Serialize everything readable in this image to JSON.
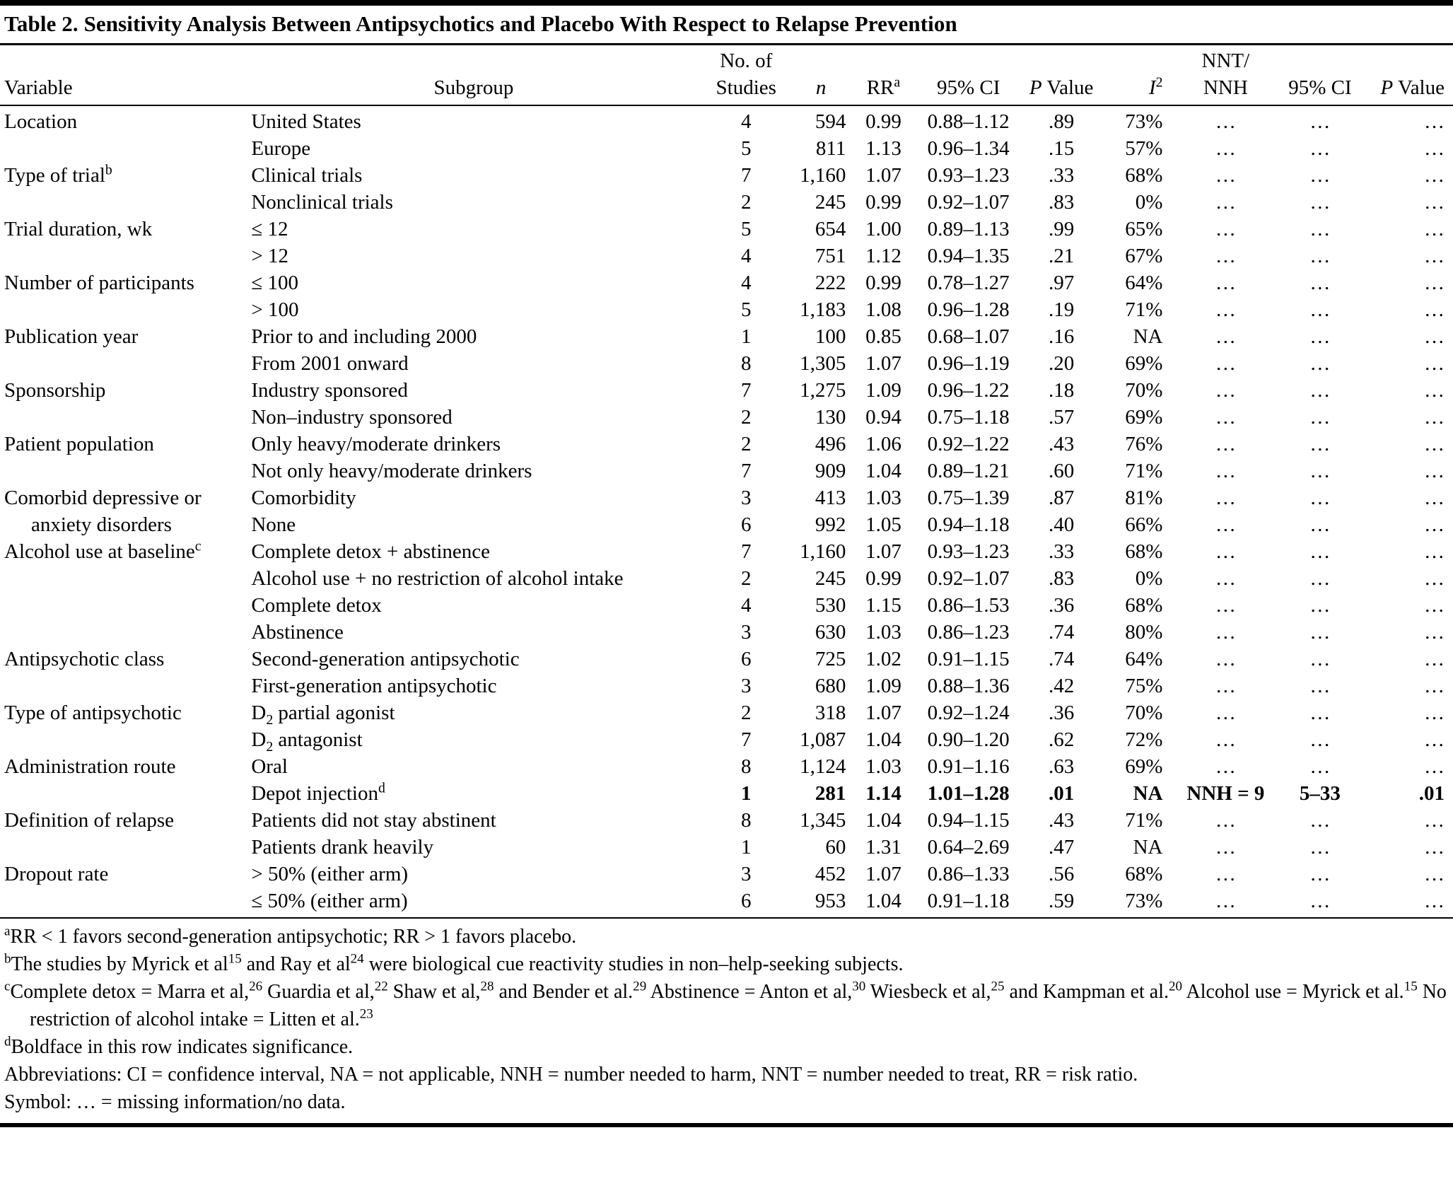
{
  "title": "Table 2. Sensitivity Analysis Between Antipsychotics and Placebo With Respect to Relapse Prevention",
  "table": {
    "header": {
      "line1": {
        "variable": "",
        "subgroup": "",
        "studies": "No. of",
        "n": "",
        "rr": "",
        "ci": "",
        "p": "",
        "i2": "",
        "nnt": "NNT/",
        "ci2": "",
        "p2": ""
      },
      "line2": {
        "variable": "Variable",
        "subgroup": "Subgroup",
        "studies": "Studies",
        "n": "*n*",
        "rr": "RR^a^",
        "ci": "95% CI",
        "p": "*P* Value",
        "i2": "*I*^2^",
        "nnt": "NNH",
        "ci2": "95% CI",
        "p2": "*P* Value"
      }
    },
    "rows": [
      {
        "variable": "Location",
        "subgroup": "United States",
        "studies": "4",
        "n": "594",
        "rr": "0.99",
        "ci": "0.88–1.12",
        "p": ".89",
        "i2": "73%",
        "nnt": "…",
        "ci2": "…",
        "p2": "…"
      },
      {
        "variable": "",
        "subgroup": "Europe",
        "studies": "5",
        "n": "811",
        "rr": "1.13",
        "ci": "0.96–1.34",
        "p": ".15",
        "i2": "57%",
        "nnt": "…",
        "ci2": "…",
        "p2": "…"
      },
      {
        "variable": "Type of trial^b^",
        "subgroup": "Clinical trials",
        "studies": "7",
        "n": "1,160",
        "rr": "1.07",
        "ci": "0.93–1.23",
        "p": ".33",
        "i2": "68%",
        "nnt": "…",
        "ci2": "…",
        "p2": "…"
      },
      {
        "variable": "",
        "subgroup": "Nonclinical trials",
        "studies": "2",
        "n": "245",
        "rr": "0.99",
        "ci": "0.92–1.07",
        "p": ".83",
        "i2": "0%",
        "nnt": "…",
        "ci2": "…",
        "p2": "…"
      },
      {
        "variable": "Trial duration, wk",
        "subgroup": "≤ 12",
        "studies": "5",
        "n": "654",
        "rr": "1.00",
        "ci": "0.89–1.13",
        "p": ".99",
        "i2": "65%",
        "nnt": "…",
        "ci2": "…",
        "p2": "…"
      },
      {
        "variable": "",
        "subgroup": "> 12",
        "studies": "4",
        "n": "751",
        "rr": "1.12",
        "ci": "0.94–1.35",
        "p": ".21",
        "i2": "67%",
        "nnt": "…",
        "ci2": "…",
        "p2": "…"
      },
      {
        "variable": "Number of participants",
        "subgroup": "≤ 100",
        "studies": "4",
        "n": "222",
        "rr": "0.99",
        "ci": "0.78–1.27",
        "p": ".97",
        "i2": "64%",
        "nnt": "…",
        "ci2": "…",
        "p2": "…"
      },
      {
        "variable": "",
        "subgroup": "> 100",
        "studies": "5",
        "n": "1,183",
        "rr": "1.08",
        "ci": "0.96–1.28",
        "p": ".19",
        "i2": "71%",
        "nnt": "…",
        "ci2": "…",
        "p2": "…"
      },
      {
        "variable": "Publication year",
        "subgroup": "Prior to and including 2000",
        "studies": "1",
        "n": "100",
        "rr": "0.85",
        "ci": "0.68–1.07",
        "p": ".16",
        "i2": "NA",
        "nnt": "…",
        "ci2": "…",
        "p2": "…"
      },
      {
        "variable": "",
        "subgroup": "From 2001 onward",
        "studies": "8",
        "n": "1,305",
        "rr": "1.07",
        "ci": "0.96–1.19",
        "p": ".20",
        "i2": "69%",
        "nnt": "…",
        "ci2": "…",
        "p2": "…"
      },
      {
        "variable": "Sponsorship",
        "subgroup": "Industry sponsored",
        "studies": "7",
        "n": "1,275",
        "rr": "1.09",
        "ci": "0.96–1.22",
        "p": ".18",
        "i2": "70%",
        "nnt": "…",
        "ci2": "…",
        "p2": "…"
      },
      {
        "variable": "",
        "subgroup": "Non–industry sponsored",
        "studies": "2",
        "n": "130",
        "rr": "0.94",
        "ci": "0.75–1.18",
        "p": ".57",
        "i2": "69%",
        "nnt": "…",
        "ci2": "…",
        "p2": "…"
      },
      {
        "variable": "Patient population",
        "subgroup": "Only heavy/moderate drinkers",
        "studies": "2",
        "n": "496",
        "rr": "1.06",
        "ci": "0.92–1.22",
        "p": ".43",
        "i2": "76%",
        "nnt": "…",
        "ci2": "…",
        "p2": "…"
      },
      {
        "variable": "",
        "subgroup": "Not only heavy/moderate drinkers",
        "studies": "7",
        "n": "909",
        "rr": "1.04",
        "ci": "0.89–1.21",
        "p": ".60",
        "i2": "71%",
        "nnt": "…",
        "ci2": "…",
        "p2": "…"
      },
      {
        "variable": "Comorbid depressive or",
        "subgroup": "Comorbidity",
        "studies": "3",
        "n": "413",
        "rr": "1.03",
        "ci": "0.75–1.39",
        "p": ".87",
        "i2": "81%",
        "nnt": "…",
        "ci2": "…",
        "p2": "…"
      },
      {
        "variable": "anxiety disorders",
        "variable_indent": true,
        "subgroup": "None",
        "studies": "6",
        "n": "992",
        "rr": "1.05",
        "ci": "0.94–1.18",
        "p": ".40",
        "i2": "66%",
        "nnt": "…",
        "ci2": "…",
        "p2": "…"
      },
      {
        "variable": "Alcohol use at baseline^c^",
        "subgroup": "Complete detox + abstinence",
        "studies": "7",
        "n": "1,160",
        "rr": "1.07",
        "ci": "0.93–1.23",
        "p": ".33",
        "i2": "68%",
        "nnt": "…",
        "ci2": "…",
        "p2": "…"
      },
      {
        "variable": "",
        "subgroup": "Alcohol use + no restriction of alcohol intake",
        "studies": "2",
        "n": "245",
        "rr": "0.99",
        "ci": "0.92–1.07",
        "p": ".83",
        "i2": "0%",
        "nnt": "…",
        "ci2": "…",
        "p2": "…"
      },
      {
        "variable": "",
        "subgroup": "Complete detox",
        "studies": "4",
        "n": "530",
        "rr": "1.15",
        "ci": "0.86–1.53",
        "p": ".36",
        "i2": "68%",
        "nnt": "…",
        "ci2": "…",
        "p2": "…"
      },
      {
        "variable": "",
        "subgroup": "Abstinence",
        "studies": "3",
        "n": "630",
        "rr": "1.03",
        "ci": "0.86–1.23",
        "p": ".74",
        "i2": "80%",
        "nnt": "…",
        "ci2": "…",
        "p2": "…"
      },
      {
        "variable": "Antipsychotic class",
        "subgroup": "Second-generation antipsychotic",
        "studies": "6",
        "n": "725",
        "rr": "1.02",
        "ci": "0.91–1.15",
        "p": ".74",
        "i2": "64%",
        "nnt": "…",
        "ci2": "…",
        "p2": "…"
      },
      {
        "variable": "",
        "subgroup": "First-generation antipsychotic",
        "studies": "3",
        "n": "680",
        "rr": "1.09",
        "ci": "0.88–1.36",
        "p": ".42",
        "i2": "75%",
        "nnt": "…",
        "ci2": "…",
        "p2": "…"
      },
      {
        "variable": "Type of antipsychotic",
        "subgroup": "D~2~ partial agonist",
        "studies": "2",
        "n": "318",
        "rr": "1.07",
        "ci": "0.92–1.24",
        "p": ".36",
        "i2": "70%",
        "nnt": "…",
        "ci2": "…",
        "p2": "…"
      },
      {
        "variable": "",
        "subgroup": "D~2~ antagonist",
        "studies": "7",
        "n": "1,087",
        "rr": "1.04",
        "ci": "0.90–1.20",
        "p": ".62",
        "i2": "72%",
        "nnt": "…",
        "ci2": "…",
        "p2": "…"
      },
      {
        "variable": "Administration route",
        "subgroup": "Oral",
        "studies": "8",
        "n": "1,124",
        "rr": "1.03",
        "ci": "0.91–1.16",
        "p": ".63",
        "i2": "69%",
        "nnt": "…",
        "ci2": "…",
        "p2": "…"
      },
      {
        "variable": "",
        "subgroup": "Depot injection^d^",
        "bold": true,
        "studies": "1",
        "n": "281",
        "rr": "1.14",
        "ci": "1.01–1.28",
        "p": ".01",
        "i2": "NA",
        "nnt": "NNH = 9",
        "ci2": "5–33",
        "p2": ".01"
      },
      {
        "variable": "Definition of relapse",
        "subgroup": "Patients did not stay abstinent",
        "studies": "8",
        "n": "1,345",
        "rr": "1.04",
        "ci": "0.94–1.15",
        "p": ".43",
        "i2": "71%",
        "nnt": "…",
        "ci2": "…",
        "p2": "…"
      },
      {
        "variable": "",
        "subgroup": "Patients drank heavily",
        "studies": "1",
        "n": "60",
        "rr": "1.31",
        "ci": "0.64–2.69",
        "p": ".47",
        "i2": "NA",
        "nnt": "…",
        "ci2": "…",
        "p2": "…"
      },
      {
        "variable": "Dropout rate",
        "subgroup": "> 50% (either arm)",
        "studies": "3",
        "n": "452",
        "rr": "1.07",
        "ci": "0.86–1.33",
        "p": ".56",
        "i2": "68%",
        "nnt": "…",
        "ci2": "…",
        "p2": "…"
      },
      {
        "variable": "",
        "subgroup": "≤ 50% (either arm)",
        "studies": "6",
        "n": "953",
        "rr": "1.04",
        "ci": "0.91–1.18",
        "p": ".59",
        "i2": "73%",
        "nnt": "…",
        "ci2": "…",
        "p2": "…"
      }
    ]
  },
  "footnotes": [
    "^a^RR < 1 favors second-generation antipsychotic; RR > 1 favors placebo.",
    "^b^The studies by Myrick et al^15^ and Ray et al^24^ were biological cue reactivity studies in non–help-seeking subjects.",
    "^c^Complete detox = Marra et al,^26^ Guardia et al,^22^ Shaw et al,^28^ and Bender et al.^29^ Abstinence = Anton et al,^30^ Wiesbeck et al,^25^ and Kampman et al.^20^ Alcohol use = Myrick et al.^15^ No restriction of alcohol intake = Litten et al.^23^",
    "^d^Boldface in this row indicates significance.",
    "Abbreviations: CI = confidence interval, NA = not applicable, NNH = number needed to harm, NNT = number needed to treat, RR = risk ratio.",
    "Symbol: … = missing information/no data."
  ]
}
